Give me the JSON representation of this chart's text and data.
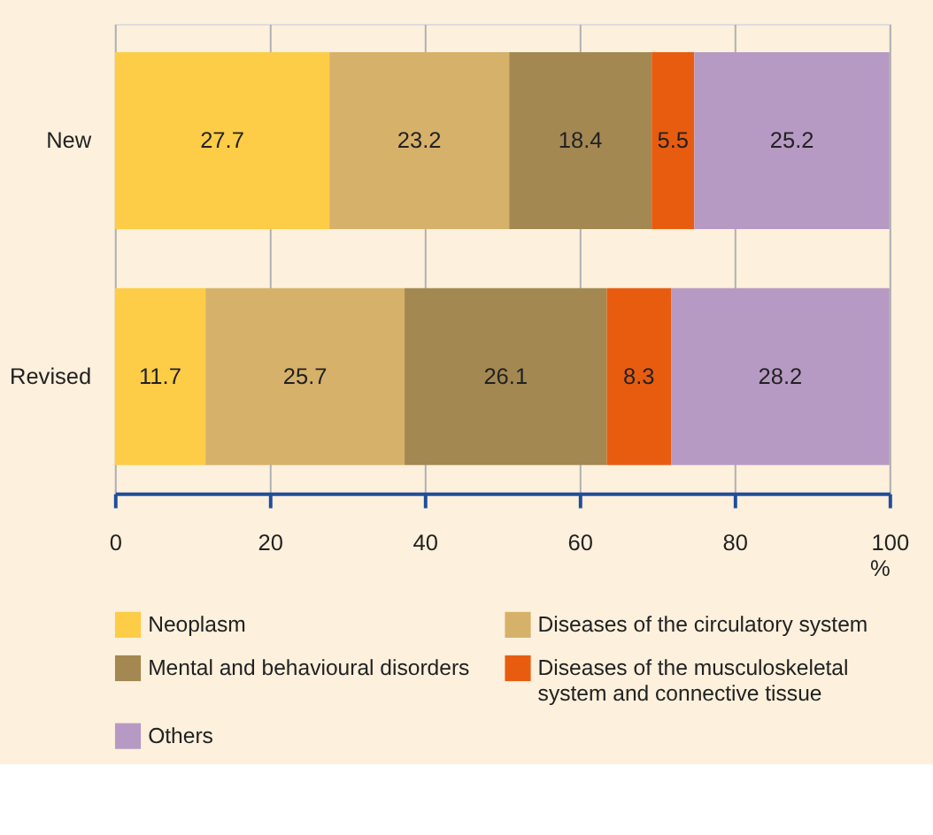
{
  "chart_data": {
    "type": "bar",
    "orientation": "horizontal",
    "stacked": true,
    "categories": [
      "New",
      "Revised"
    ],
    "series": [
      {
        "name": "Neoplasm",
        "color": "#fdcd48",
        "values": [
          27.7,
          11.7
        ]
      },
      {
        "name": "Diseases of the circulatory system",
        "color": "#d6b16a",
        "values": [
          23.2,
          25.7
        ]
      },
      {
        "name": "Mental and behavioural disorders",
        "color": "#a38852",
        "values": [
          18.4,
          26.1
        ]
      },
      {
        "name": "Diseases of the musculoskeletal system and connective tissue",
        "color": "#e85c10",
        "values": [
          5.5,
          8.3
        ]
      },
      {
        "name": "Others",
        "color": "#b79ac3",
        "values": [
          25.2,
          28.2
        ]
      }
    ],
    "xlim": [
      0,
      100
    ],
    "xticks": [
      0,
      20,
      40,
      60,
      80,
      100
    ],
    "xlabel": "%",
    "grid": "x",
    "data_labels": true,
    "legend": "bottom"
  }
}
